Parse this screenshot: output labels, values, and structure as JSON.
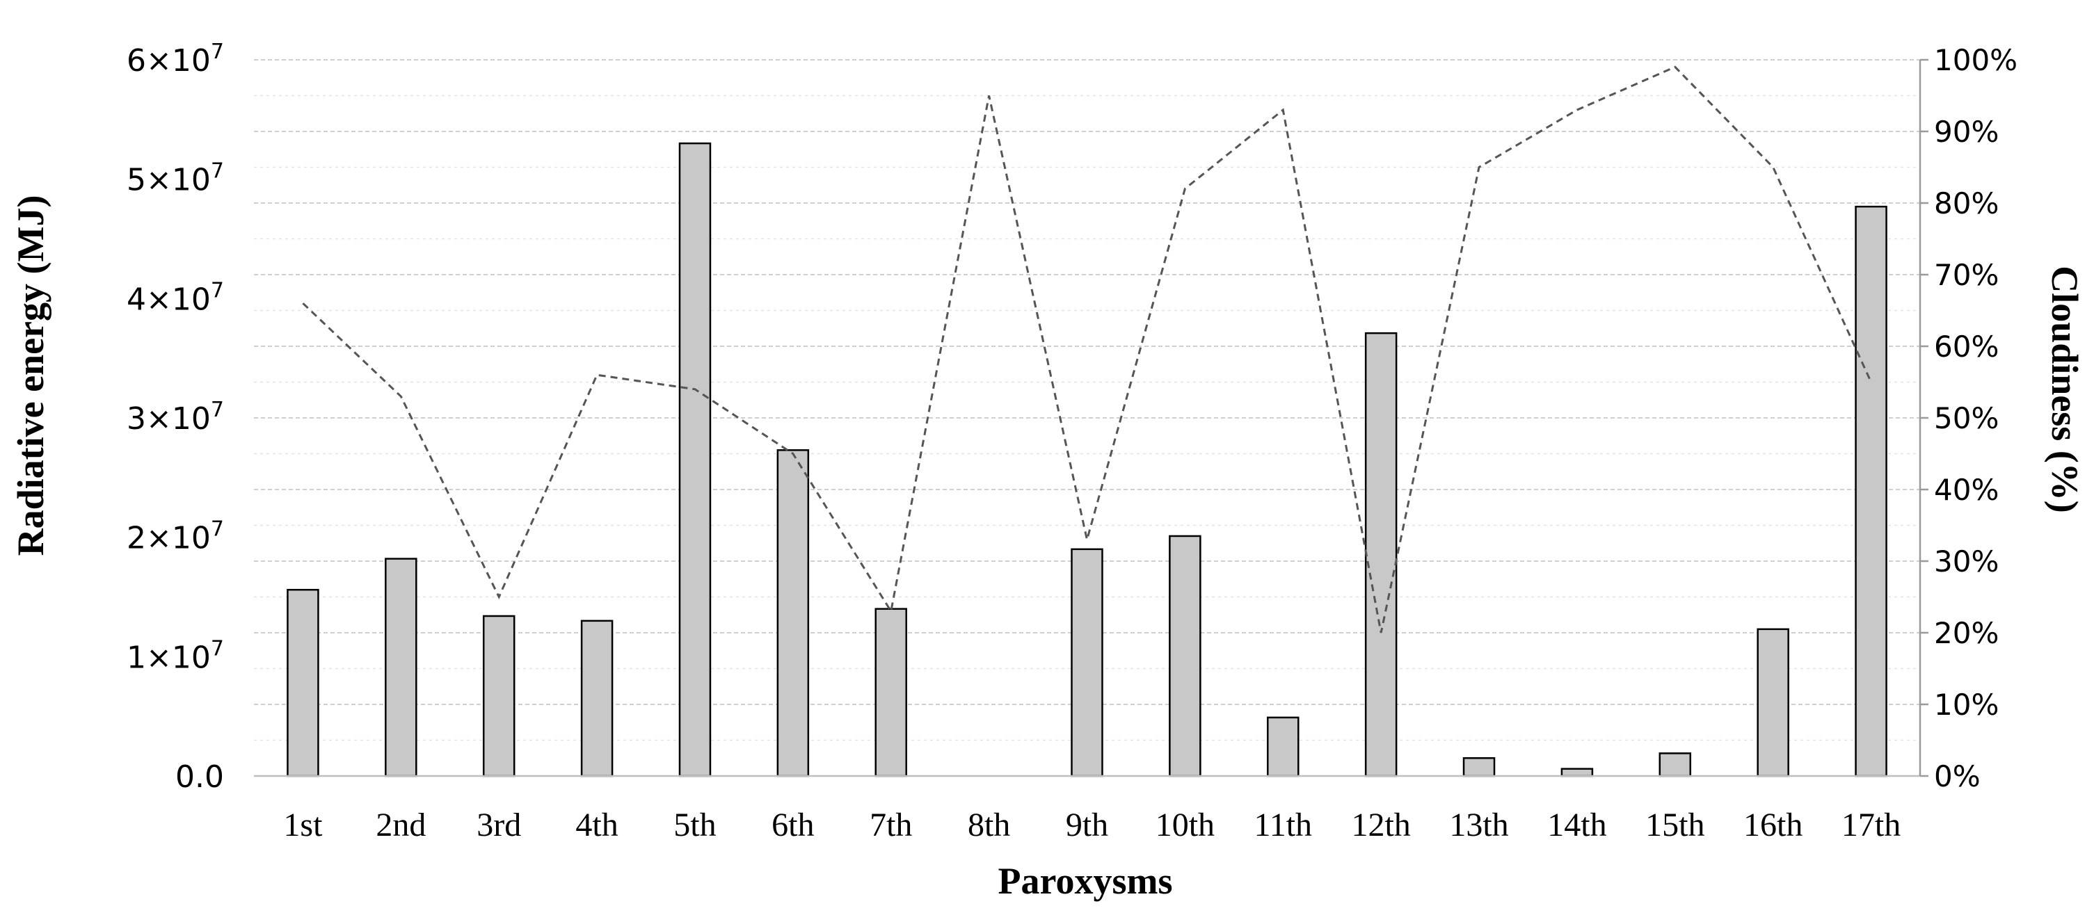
{
  "chart_data": {
    "type": "bar",
    "categories": [
      "1st",
      "2nd",
      "3rd",
      "4th",
      "5th",
      "6th",
      "7th",
      "8th",
      "9th",
      "10th",
      "11th",
      "12th",
      "13th",
      "14th",
      "15th",
      "16th",
      "17th"
    ],
    "title": "",
    "xlabel": "Paroxysms",
    "ylabel": "Radiative energy (MJ)",
    "y2label": "Cloudiness (%)",
    "ylim": [
      0,
      60000000
    ],
    "y2lim": [
      0,
      100
    ],
    "grid": true,
    "y_ticks": [
      {
        "value": 0,
        "base": "0.0",
        "exp": ""
      },
      {
        "value": 10000000,
        "base": "1×10",
        "exp": "7"
      },
      {
        "value": 20000000,
        "base": "2×10",
        "exp": "7"
      },
      {
        "value": 30000000,
        "base": "3×10",
        "exp": "7"
      },
      {
        "value": 40000000,
        "base": "4×10",
        "exp": "7"
      },
      {
        "value": 50000000,
        "base": "5×10",
        "exp": "7"
      },
      {
        "value": 60000000,
        "base": "6×10",
        "exp": "7"
      }
    ],
    "y2_ticks": [
      {
        "value": 0,
        "label": "0%"
      },
      {
        "value": 10,
        "label": "10%"
      },
      {
        "value": 20,
        "label": "20%"
      },
      {
        "value": 30,
        "label": "30%"
      },
      {
        "value": 40,
        "label": "40%"
      },
      {
        "value": 50,
        "label": "50%"
      },
      {
        "value": 60,
        "label": "60%"
      },
      {
        "value": 70,
        "label": "70%"
      },
      {
        "value": 80,
        "label": "80%"
      },
      {
        "value": 90,
        "label": "90%"
      },
      {
        "value": 100,
        "label": "100%"
      }
    ],
    "series": [
      {
        "type": "bar",
        "axis": "left",
        "color": "#c8c8c8",
        "values": [
          15600000,
          18200000,
          13400000,
          13000000,
          53000000,
          27300000,
          14000000,
          0,
          19000000,
          20100000,
          4900000,
          37100000,
          1500000,
          600000,
          1900000,
          12300000,
          47700000
        ]
      },
      {
        "type": "line",
        "axis": "right",
        "style": "dashed",
        "color": "#555555",
        "values": [
          66,
          53,
          25,
          56,
          54,
          45,
          23,
          95,
          33,
          82,
          93,
          20,
          85,
          93,
          99,
          85,
          55
        ]
      }
    ]
  }
}
